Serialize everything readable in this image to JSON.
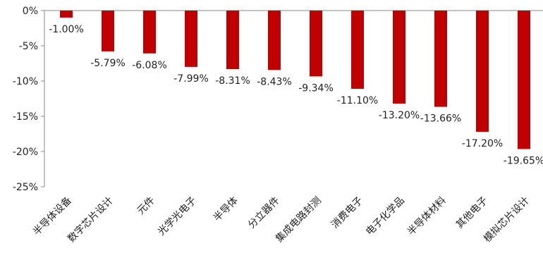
{
  "chart_data": {
    "type": "bar",
    "title": "",
    "xlabel": "",
    "ylabel": "",
    "ylim": [
      -25,
      0
    ],
    "yticks": [
      "0%",
      "-5%",
      "-10%",
      "-15%",
      "-20%",
      "-25%"
    ],
    "ytick_values": [
      0,
      -5,
      -10,
      -15,
      -20,
      -25
    ],
    "grid": false,
    "bar_color": "#C00000",
    "categories": [
      "半导体设备",
      "数字芯片设计",
      "元件",
      "光学光电子",
      "半导体",
      "分立器件",
      "集成电路封测",
      "消费电子",
      "电子化学品",
      "半导体材料",
      "其他电子",
      "模拟芯片设计"
    ],
    "values": [
      -1.0,
      -5.79,
      -6.08,
      -7.99,
      -8.31,
      -8.43,
      -9.34,
      -11.1,
      -13.2,
      -13.66,
      -17.2,
      -19.65
    ],
    "value_labels": [
      "-1.00%",
      "-5.79%",
      "-6.08%",
      "-7.99%",
      "-8.31%",
      "-8.43%",
      "-9.34%",
      "-11.10%",
      "-13.20%",
      "-13.66%",
      "-17.20%",
      "-19.65%"
    ]
  }
}
